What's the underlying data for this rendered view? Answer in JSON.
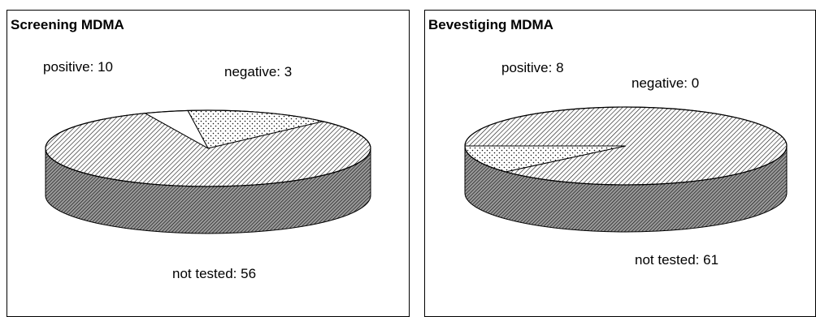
{
  "chart_data": [
    {
      "type": "pie",
      "title": "Screening MDMA",
      "slices": [
        {
          "label": "positive",
          "value": 10,
          "text": "positive: 10",
          "pattern": "dots"
        },
        {
          "label": "negative",
          "value": 3,
          "text": "negative: 3",
          "pattern": "white"
        },
        {
          "label": "not tested",
          "value": 56,
          "text": "not tested: 56",
          "pattern": "hatch"
        }
      ]
    },
    {
      "type": "pie",
      "title": "Bevestiging MDMA",
      "slices": [
        {
          "label": "positive",
          "value": 8,
          "text": "positive: 8",
          "pattern": "dots"
        },
        {
          "label": "negative",
          "value": 0,
          "text": "negative: 0",
          "pattern": "white"
        },
        {
          "label": "not tested",
          "value": 61,
          "text": "not tested: 61",
          "pattern": "hatch"
        }
      ]
    }
  ]
}
